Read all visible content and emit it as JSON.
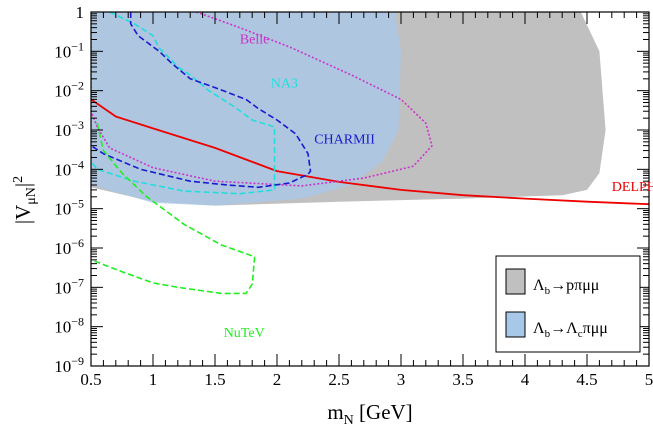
{
  "chart_data": {
    "type": "area",
    "xlabel": "m",
    "xlabel_sub": "N",
    "xlabel_unit": " [GeV]",
    "ylabel_main": "|V",
    "ylabel_sub": "μN",
    "ylabel_close": "|",
    "ylabel_sup": "2",
    "x_scale": "linear",
    "y_scale": "log",
    "xlim": [
      0.5,
      5
    ],
    "ylim": [
      1e-09,
      1
    ],
    "x_ticks": [
      {
        "value": 0.5,
        "label": "0.5"
      },
      {
        "value": 1,
        "label": "1"
      },
      {
        "value": 1.5,
        "label": "1.5"
      },
      {
        "value": 2,
        "label": "2"
      },
      {
        "value": 2.5,
        "label": "2.5"
      },
      {
        "value": 3,
        "label": "3"
      },
      {
        "value": 3.5,
        "label": "3.5"
      },
      {
        "value": 4,
        "label": "4"
      },
      {
        "value": 4.5,
        "label": "4.5"
      },
      {
        "value": 5,
        "label": "5"
      }
    ],
    "y_ticks": [
      {
        "value": 1,
        "base": "1",
        "exp": ""
      },
      {
        "value": 0.1,
        "base": "10",
        "exp": "−1"
      },
      {
        "value": 0.01,
        "base": "10",
        "exp": "−2"
      },
      {
        "value": 0.001,
        "base": "10",
        "exp": "−3"
      },
      {
        "value": 0.0001,
        "base": "10",
        "exp": "−4"
      },
      {
        "value": 1e-05,
        "base": "10",
        "exp": "−5"
      },
      {
        "value": 1e-06,
        "base": "10",
        "exp": "−6"
      },
      {
        "value": 1e-07,
        "base": "10",
        "exp": "−7"
      },
      {
        "value": 1e-08,
        "base": "10",
        "exp": "−8"
      },
      {
        "value": 1e-09,
        "base": "10",
        "exp": "−9"
      }
    ],
    "regions": [
      {
        "id": "lb-ppimumu",
        "color": "#c0c0c0",
        "points": [
          [
            0.5,
            1
          ],
          [
            4.45,
            1
          ],
          [
            4.6,
            0.1
          ],
          [
            4.65,
            0.001
          ],
          [
            4.6,
            8e-05
          ],
          [
            4.5,
            3e-05
          ],
          [
            4.3,
            2.2e-05
          ],
          [
            3.5,
            1.8e-05
          ],
          [
            2.5,
            1.5e-05
          ],
          [
            1.5,
            1.2e-05
          ],
          [
            1,
            1.5e-05
          ],
          [
            0.5,
            3.5e-05
          ]
        ]
      },
      {
        "id": "lb-lcpimumu",
        "color": "#a8c8ea",
        "opacity": 0.75,
        "points": [
          [
            0.5,
            1
          ],
          [
            2.95,
            1
          ],
          [
            3.0,
            0.1
          ],
          [
            2.98,
            0.001
          ],
          [
            2.85,
            0.00016
          ],
          [
            2.6,
            4e-05
          ],
          [
            2.2,
            1.8e-05
          ],
          [
            1.5,
            1.2e-05
          ],
          [
            1,
            1.4e-05
          ],
          [
            0.5,
            4e-05
          ]
        ]
      }
    ],
    "series": [
      {
        "name": "DELPHI",
        "color": "#ee0000",
        "style": "solid",
        "width": 1.8,
        "label_at": [
          4.7,
          2.8e-05
        ],
        "points": [
          [
            0.5,
            0.006
          ],
          [
            0.7,
            0.0022
          ],
          [
            1,
            0.0011
          ],
          [
            1.5,
            0.00035
          ],
          [
            2,
            9e-05
          ],
          [
            2.5,
            4.8e-05
          ],
          [
            3,
            3e-05
          ],
          [
            3.5,
            2.2e-05
          ],
          [
            4,
            1.8e-05
          ],
          [
            4.5,
            1.5e-05
          ],
          [
            5,
            1.3e-05
          ]
        ]
      },
      {
        "name": "Belle",
        "color": "#cc33cc",
        "style": "dotted",
        "width": 1.6,
        "label_at": [
          1.7,
          0.16
        ],
        "points": [
          [
            1.35,
            1
          ],
          [
            1.7,
            0.4
          ],
          [
            2.1,
            0.13
          ],
          [
            2.6,
            0.025
          ],
          [
            3.0,
            0.006
          ],
          [
            3.2,
            0.0015
          ],
          [
            3.25,
            0.0004
          ],
          [
            3.1,
            0.00012
          ],
          [
            2.7,
            6e-05
          ],
          [
            2.2,
            3.8e-05
          ],
          [
            1.5,
            5e-05
          ],
          [
            1.0,
            0.00011
          ],
          [
            0.65,
            0.00035
          ],
          [
            0.55,
            0.0012
          ],
          [
            0.5,
            0.003
          ],
          [
            0.5,
            0.2
          ]
        ]
      },
      {
        "name": "NA3",
        "color": "#22dddd",
        "style": "dashed",
        "width": 1.6,
        "label_at": [
          1.95,
          0.012
        ],
        "points": [
          [
            0.65,
            1
          ],
          [
            0.85,
            0.5
          ],
          [
            1.0,
            0.25
          ],
          [
            1.05,
            0.12
          ],
          [
            1.15,
            0.06
          ],
          [
            1.2,
            0.04
          ],
          [
            1.3,
            0.025
          ],
          [
            1.45,
            0.01
          ],
          [
            1.65,
            0.004
          ],
          [
            1.8,
            0.0018
          ],
          [
            1.98,
            0.0012
          ],
          [
            1.98,
            3e-05
          ],
          [
            1.7,
            2.4e-05
          ],
          [
            1.25,
            2.8e-05
          ],
          [
            0.85,
            5e-05
          ],
          [
            0.55,
            0.0001
          ],
          [
            0.5,
            0.00016
          ]
        ]
      },
      {
        "name": "CHARMII",
        "color": "#1a1ad0",
        "style": "dashed",
        "width": 1.6,
        "label_at": [
          2.3,
          0.00045
        ],
        "points": [
          [
            0.82,
            1
          ],
          [
            0.82,
            0.5
          ],
          [
            0.88,
            0.25
          ],
          [
            1.05,
            0.1
          ],
          [
            1.15,
            0.05
          ],
          [
            1.3,
            0.02
          ],
          [
            1.5,
            0.012
          ],
          [
            1.75,
            0.006
          ],
          [
            1.85,
            0.0035
          ],
          [
            2.0,
            0.0018
          ],
          [
            2.15,
            0.0008
          ],
          [
            2.25,
            0.00025
          ],
          [
            2.27,
            9e-05
          ],
          [
            2.25,
            7.5e-05
          ],
          [
            2.1,
            4.5e-05
          ],
          [
            1.85,
            3.5e-05
          ],
          [
            1.6,
            4e-05
          ],
          [
            1.3,
            5e-05
          ],
          [
            0.9,
            0.0001
          ],
          [
            0.6,
            0.00025
          ],
          [
            0.5,
            0.0004
          ]
        ]
      },
      {
        "name": "NuTeV",
        "color": "#22ee22",
        "style": "dashed",
        "width": 1.6,
        "label_at": [
          1.57,
          5.5e-09
        ],
        "points": [
          [
            0.55,
            0.0015
          ],
          [
            0.6,
            0.0003
          ],
          [
            0.75,
            8e-05
          ],
          [
            0.95,
            2e-05
          ],
          [
            1.25,
            4e-06
          ],
          [
            1.55,
            1.2e-06
          ],
          [
            1.82,
            6e-07
          ],
          [
            1.8,
            1.2e-07
          ],
          [
            1.75,
            7e-08
          ],
          [
            1.55,
            7e-08
          ],
          [
            1.2,
            1e-07
          ],
          [
            1.0,
            1.3e-07
          ],
          [
            0.75,
            2.5e-07
          ],
          [
            0.5,
            5e-07
          ]
        ]
      }
    ],
    "legend": {
      "placement": "bottom-right",
      "entries": [
        {
          "ref": "lb-ppimumu",
          "color": "#c0c0c0",
          "a": "Λ",
          "a_sub": "b",
          "b": "→pπμμ",
          "b_sub": "",
          "c": ""
        },
        {
          "ref": "lb-lcpimumu",
          "color": "#a8c8ea",
          "a": "Λ",
          "a_sub": "b",
          "b": "→Λ",
          "b_sub": "c",
          "c": "πμμ"
        }
      ]
    },
    "grid": false
  }
}
